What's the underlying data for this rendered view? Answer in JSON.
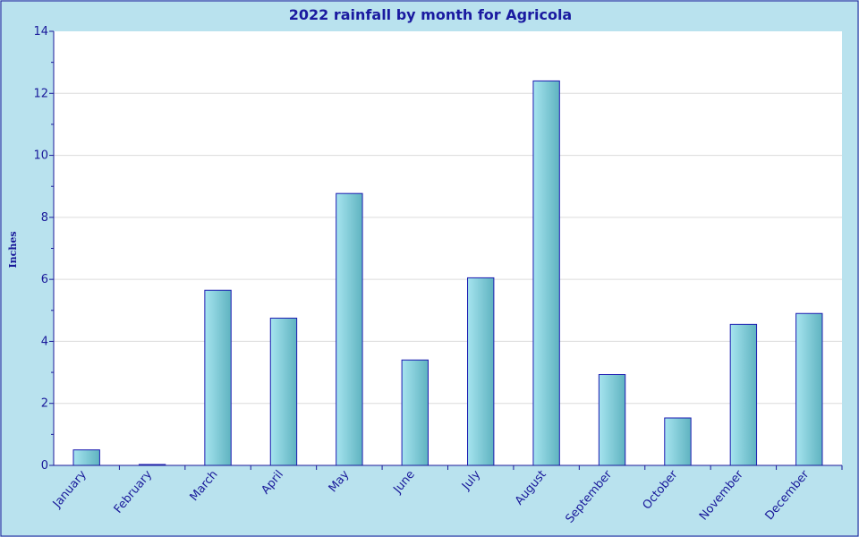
{
  "chart_data": {
    "type": "bar",
    "title": "2022 rainfall by month for Agricola",
    "xlabel": "",
    "ylabel": "Inches",
    "categories": [
      "January",
      "February",
      "March",
      "April",
      "May",
      "June",
      "July",
      "August",
      "September",
      "October",
      "November",
      "December"
    ],
    "values": [
      0.5,
      0.03,
      5.65,
      4.75,
      8.77,
      3.4,
      6.05,
      12.4,
      2.93,
      1.53,
      4.55,
      4.9
    ],
    "ylim": [
      0,
      14
    ],
    "yticks": [
      "0",
      "2",
      "4",
      "6",
      "8",
      "10",
      "12",
      "14"
    ],
    "grid": true,
    "legend": "none"
  },
  "colors": {
    "background": "#b9e2ee",
    "plot_background": "#ffffff",
    "bar_light": "#a6e4ef",
    "bar_dark": "#5fb3c0",
    "bar_outline": "#1a1ab0",
    "text": "#1a1a9a",
    "gridline": "#dcdcdc"
  }
}
